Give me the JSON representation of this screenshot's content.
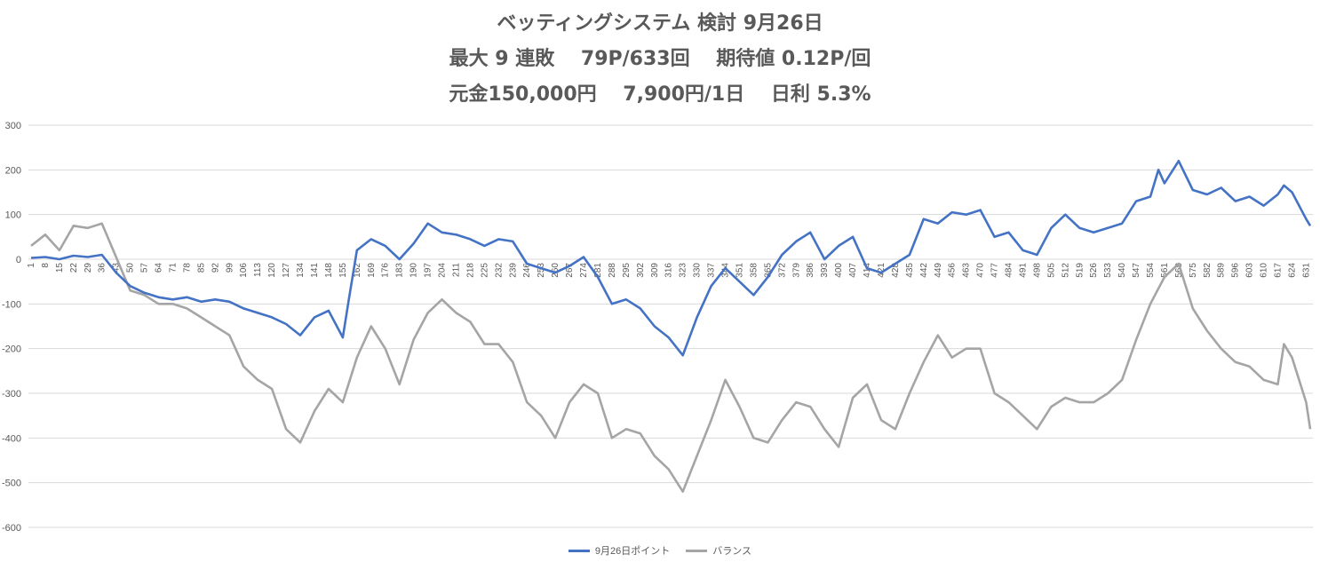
{
  "chart_data": {
    "type": "line",
    "title_lines": [
      "ベッティングシステム 検討 9月26日",
      "最大 9 連敗　 79P/633回　 期待値 0.12P/回",
      "元金150,000円　 7,900円/1日　  日利 5.3%"
    ],
    "xlabel": "",
    "ylabel": "",
    "ylim": [
      -600,
      300
    ],
    "yticks": [
      300,
      200,
      100,
      0,
      -100,
      -200,
      -300,
      -400,
      -500,
      -600
    ],
    "x_range": [
      1,
      633
    ],
    "x_tick_start": 1,
    "x_tick_step": 7,
    "grid": true,
    "legend_position": "bottom",
    "series": [
      {
        "name": "9月26日ポイント",
        "color": "#4472C4",
        "points": [
          [
            1,
            3
          ],
          [
            8,
            5
          ],
          [
            15,
            0
          ],
          [
            22,
            8
          ],
          [
            29,
            5
          ],
          [
            36,
            10
          ],
          [
            43,
            -30
          ],
          [
            50,
            -60
          ],
          [
            57,
            -75
          ],
          [
            64,
            -85
          ],
          [
            71,
            -90
          ],
          [
            78,
            -85
          ],
          [
            85,
            -95
          ],
          [
            92,
            -90
          ],
          [
            99,
            -95
          ],
          [
            106,
            -110
          ],
          [
            113,
            -120
          ],
          [
            120,
            -130
          ],
          [
            127,
            -145
          ],
          [
            134,
            -170
          ],
          [
            141,
            -130
          ],
          [
            148,
            -115
          ],
          [
            155,
            -175
          ],
          [
            158,
            -90
          ],
          [
            162,
            20
          ],
          [
            169,
            45
          ],
          [
            176,
            30
          ],
          [
            183,
            0
          ],
          [
            190,
            35
          ],
          [
            197,
            80
          ],
          [
            204,
            60
          ],
          [
            211,
            55
          ],
          [
            218,
            45
          ],
          [
            225,
            30
          ],
          [
            232,
            45
          ],
          [
            239,
            40
          ],
          [
            246,
            -10
          ],
          [
            253,
            -20
          ],
          [
            260,
            -30
          ],
          [
            267,
            -15
          ],
          [
            274,
            5
          ],
          [
            281,
            -40
          ],
          [
            288,
            -100
          ],
          [
            295,
            -90
          ],
          [
            302,
            -110
          ],
          [
            309,
            -150
          ],
          [
            316,
            -175
          ],
          [
            323,
            -215
          ],
          [
            330,
            -130
          ],
          [
            337,
            -60
          ],
          [
            344,
            -20
          ],
          [
            351,
            -50
          ],
          [
            358,
            -80
          ],
          [
            365,
            -40
          ],
          [
            372,
            10
          ],
          [
            379,
            40
          ],
          [
            386,
            60
          ],
          [
            393,
            0
          ],
          [
            400,
            30
          ],
          [
            407,
            50
          ],
          [
            414,
            -20
          ],
          [
            421,
            -30
          ],
          [
            428,
            -10
          ],
          [
            435,
            10
          ],
          [
            442,
            90
          ],
          [
            449,
            80
          ],
          [
            456,
            105
          ],
          [
            463,
            100
          ],
          [
            470,
            110
          ],
          [
            477,
            50
          ],
          [
            484,
            60
          ],
          [
            491,
            20
          ],
          [
            498,
            10
          ],
          [
            505,
            70
          ],
          [
            512,
            100
          ],
          [
            519,
            70
          ],
          [
            526,
            60
          ],
          [
            533,
            70
          ],
          [
            540,
            80
          ],
          [
            547,
            130
          ],
          [
            554,
            140
          ],
          [
            558,
            200
          ],
          [
            561,
            170
          ],
          [
            568,
            220
          ],
          [
            575,
            155
          ],
          [
            582,
            145
          ],
          [
            589,
            160
          ],
          [
            596,
            130
          ],
          [
            603,
            140
          ],
          [
            610,
            120
          ],
          [
            617,
            145
          ],
          [
            620,
            165
          ],
          [
            624,
            150
          ],
          [
            631,
            90
          ],
          [
            633,
            75
          ]
        ]
      },
      {
        "name": "バランス",
        "color": "#A5A5A5",
        "points": [
          [
            1,
            30
          ],
          [
            8,
            55
          ],
          [
            15,
            20
          ],
          [
            22,
            75
          ],
          [
            29,
            70
          ],
          [
            36,
            80
          ],
          [
            43,
            5
          ],
          [
            50,
            -70
          ],
          [
            57,
            -80
          ],
          [
            64,
            -100
          ],
          [
            71,
            -100
          ],
          [
            78,
            -110
          ],
          [
            85,
            -130
          ],
          [
            92,
            -150
          ],
          [
            99,
            -170
          ],
          [
            106,
            -240
          ],
          [
            113,
            -270
          ],
          [
            120,
            -290
          ],
          [
            127,
            -380
          ],
          [
            134,
            -410
          ],
          [
            141,
            -340
          ],
          [
            148,
            -290
          ],
          [
            155,
            -320
          ],
          [
            162,
            -220
          ],
          [
            169,
            -150
          ],
          [
            176,
            -200
          ],
          [
            183,
            -280
          ],
          [
            190,
            -180
          ],
          [
            197,
            -120
          ],
          [
            204,
            -90
          ],
          [
            211,
            -120
          ],
          [
            218,
            -140
          ],
          [
            225,
            -190
          ],
          [
            232,
            -190
          ],
          [
            239,
            -230
          ],
          [
            246,
            -320
          ],
          [
            253,
            -350
          ],
          [
            260,
            -400
          ],
          [
            267,
            -320
          ],
          [
            274,
            -280
          ],
          [
            281,
            -300
          ],
          [
            288,
            -400
          ],
          [
            295,
            -380
          ],
          [
            302,
            -390
          ],
          [
            309,
            -440
          ],
          [
            316,
            -470
          ],
          [
            323,
            -520
          ],
          [
            330,
            -440
          ],
          [
            337,
            -360
          ],
          [
            344,
            -270
          ],
          [
            351,
            -330
          ],
          [
            358,
            -400
          ],
          [
            365,
            -410
          ],
          [
            372,
            -360
          ],
          [
            379,
            -320
          ],
          [
            386,
            -330
          ],
          [
            393,
            -380
          ],
          [
            400,
            -420
          ],
          [
            407,
            -310
          ],
          [
            414,
            -280
          ],
          [
            421,
            -360
          ],
          [
            428,
            -380
          ],
          [
            435,
            -300
          ],
          [
            442,
            -230
          ],
          [
            449,
            -170
          ],
          [
            456,
            -220
          ],
          [
            463,
            -200
          ],
          [
            470,
            -200
          ],
          [
            477,
            -300
          ],
          [
            484,
            -320
          ],
          [
            491,
            -350
          ],
          [
            498,
            -380
          ],
          [
            505,
            -330
          ],
          [
            512,
            -310
          ],
          [
            519,
            -320
          ],
          [
            526,
            -320
          ],
          [
            533,
            -300
          ],
          [
            540,
            -270
          ],
          [
            547,
            -180
          ],
          [
            554,
            -100
          ],
          [
            561,
            -40
          ],
          [
            568,
            -10
          ],
          [
            575,
            -110
          ],
          [
            582,
            -160
          ],
          [
            589,
            -200
          ],
          [
            596,
            -230
          ],
          [
            603,
            -240
          ],
          [
            610,
            -270
          ],
          [
            617,
            -280
          ],
          [
            620,
            -190
          ],
          [
            624,
            -220
          ],
          [
            631,
            -320
          ],
          [
            633,
            -380
          ]
        ]
      }
    ]
  }
}
